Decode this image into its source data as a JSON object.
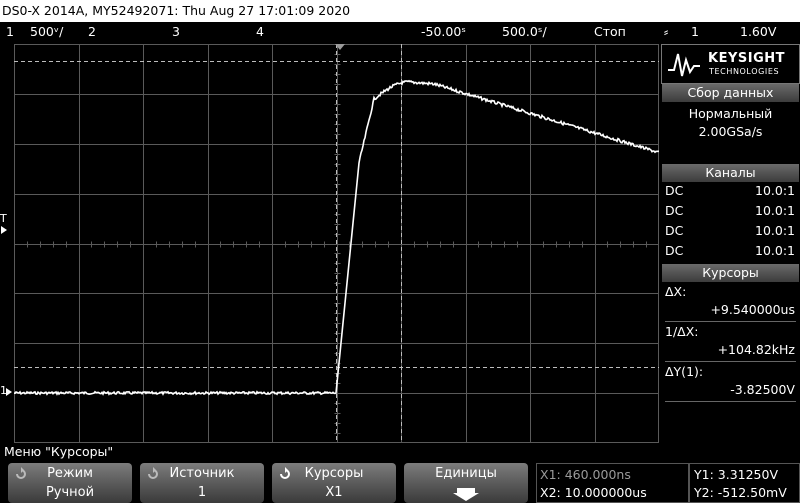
{
  "title_bar": "DS0-X 2014A, MY52492071: Thu Aug 27 17:01:09 2020",
  "status_bar": {
    "ch1_number": "1",
    "ch1_scale": "500ᵛ/",
    "ch2_number": "2",
    "ch3_number": "3",
    "ch4_number": "4",
    "time_offset": "-50.00ˢ",
    "time_scale": "500.0ˢ/",
    "run_state": "Стоп",
    "trigger_source": "1",
    "trigger_level": "1.60V"
  },
  "logo": {
    "brand": "KEYSIGHT",
    "sub": "TECHNOLOGIES"
  },
  "acquisition": {
    "header": "Сбор данных",
    "mode": "Нормальный",
    "rate": "2.00GSa/s"
  },
  "channels": {
    "header": "Каналы",
    "rows": [
      {
        "coupling": "DC",
        "probe": "10.0:1"
      },
      {
        "coupling": "DC",
        "probe": "10.0:1"
      },
      {
        "coupling": "DC",
        "probe": "10.0:1"
      },
      {
        "coupling": "DC",
        "probe": "10.0:1"
      }
    ]
  },
  "cursors": {
    "header": "Курсоры",
    "dx_label": "ΔX:",
    "dx_value": "+9.540000us",
    "inv_dx_label": "1/ΔX:",
    "inv_dx_value": "+104.82kHz",
    "dy_label": "ΔY(1):",
    "dy_value": "-3.82500V"
  },
  "screen_markers": {
    "trigger_marker": "T",
    "ground_marker": "1"
  },
  "menu_title": "Меню \"Курсоры\"",
  "softkeys": [
    {
      "top": "Режим",
      "bottom": "Ручной"
    },
    {
      "top": "Источник",
      "bottom": "1"
    },
    {
      "top": "Курсоры",
      "bottom": "X1"
    },
    {
      "top": "Единицы",
      "bottom": ""
    }
  ],
  "cursor_readout": {
    "x1": "X1: 460.000ns",
    "x2": "X2: 10.000000us",
    "y1": "Y1: 3.31250V",
    "y2": "Y2: -512.50mV"
  },
  "colors": {
    "trace": "#ffffff",
    "grid": "#5a5a5a",
    "cursor": "#bdbdbd",
    "panel_header": "#555555"
  }
}
